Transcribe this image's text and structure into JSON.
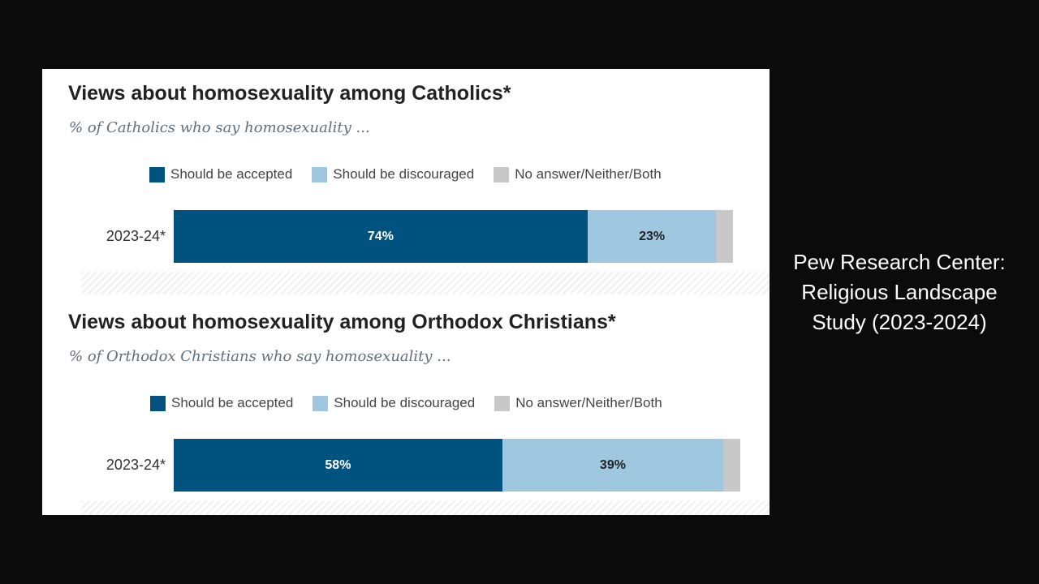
{
  "side_caption": {
    "lines": [
      "Pew Research Center:",
      "Religious Landscape",
      "Study (2023-2024)"
    ]
  },
  "colors": {
    "accepted": "#00527f",
    "discouraged": "#a0c7e0",
    "neither": "#c8c8c8",
    "label_on_dark": "#ffffff",
    "label_on_light": "#222222"
  },
  "chart_data": [
    {
      "type": "bar",
      "orientation": "horizontal",
      "stacked": true,
      "title": "Views about homosexuality among Catholics*",
      "subtitle": "% of Catholics who say homosexuality ...",
      "legend": [
        "Should be accepted",
        "Should be discouraged",
        "No answer/Neither/Both"
      ],
      "categories": [
        "2023-24*"
      ],
      "series": [
        {
          "name": "Should be accepted",
          "values": [
            74
          ],
          "label": "74%"
        },
        {
          "name": "Should be discouraged",
          "values": [
            23
          ],
          "label": "23%"
        },
        {
          "name": "No answer/Neither/Both",
          "values": [
            3
          ],
          "label": ""
        }
      ],
      "xlim": [
        0,
        100
      ]
    },
    {
      "type": "bar",
      "orientation": "horizontal",
      "stacked": true,
      "title": "Views about homosexuality among Orthodox Christians*",
      "subtitle": "% of Orthodox Christians who say homosexuality ...",
      "legend": [
        "Should be accepted",
        "Should be discouraged",
        "No answer/Neither/Both"
      ],
      "categories": [
        "2023-24*"
      ],
      "series": [
        {
          "name": "Should be accepted",
          "values": [
            58
          ],
          "label": "58%"
        },
        {
          "name": "Should be discouraged",
          "values": [
            39
          ],
          "label": "39%"
        },
        {
          "name": "No answer/Neither/Both",
          "values": [
            3
          ],
          "label": ""
        }
      ],
      "xlim": [
        0,
        100
      ]
    }
  ]
}
